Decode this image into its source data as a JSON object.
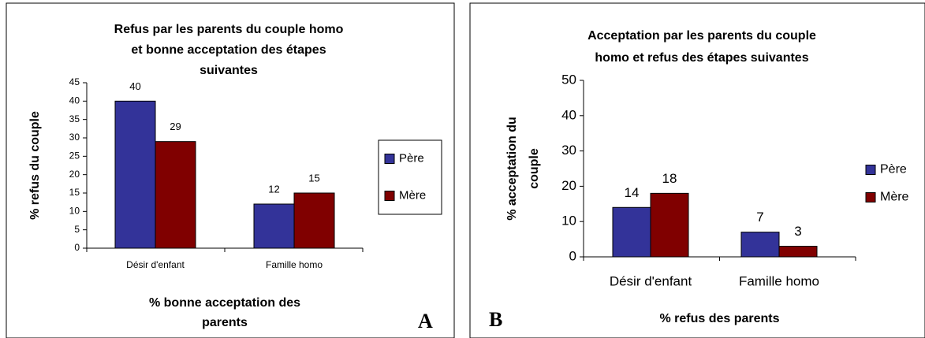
{
  "chart_data": [
    {
      "type": "bar",
      "panel": "A",
      "title": [
        "Refus par les parents du couple homo",
        "et bonne acceptation des étapes",
        "suivantes"
      ],
      "ylabel": [
        "% refus du couple"
      ],
      "xlabel": [
        "% bonne acceptation des",
        "parents"
      ],
      "categories": [
        "Désir d'enfant",
        "Famille homo"
      ],
      "series": [
        {
          "name": "Père",
          "color": "#333399",
          "values": [
            40,
            12
          ]
        },
        {
          "name": "Mère",
          "color": "#800000",
          "values": [
            29,
            15
          ]
        }
      ],
      "ylim": [
        0,
        45
      ],
      "yticks": [
        0,
        5,
        10,
        15,
        20,
        25,
        30,
        35,
        40,
        45
      ],
      "legend": "right"
    },
    {
      "type": "bar",
      "panel": "B",
      "title": [
        "Acceptation par les parents du couple",
        "homo et refus des étapes suivantes"
      ],
      "ylabel": [
        "% acceptation du",
        "couple"
      ],
      "xlabel": [
        "% refus des parents"
      ],
      "categories": [
        "Désir d'enfant",
        "Famille homo"
      ],
      "series": [
        {
          "name": "Père",
          "color": "#333399",
          "values": [
            14,
            7
          ]
        },
        {
          "name": "Mère",
          "color": "#800000",
          "values": [
            18,
            3
          ]
        }
      ],
      "ylim": [
        0,
        50
      ],
      "yticks": [
        0,
        10,
        20,
        30,
        40,
        50
      ],
      "legend": "right"
    }
  ]
}
